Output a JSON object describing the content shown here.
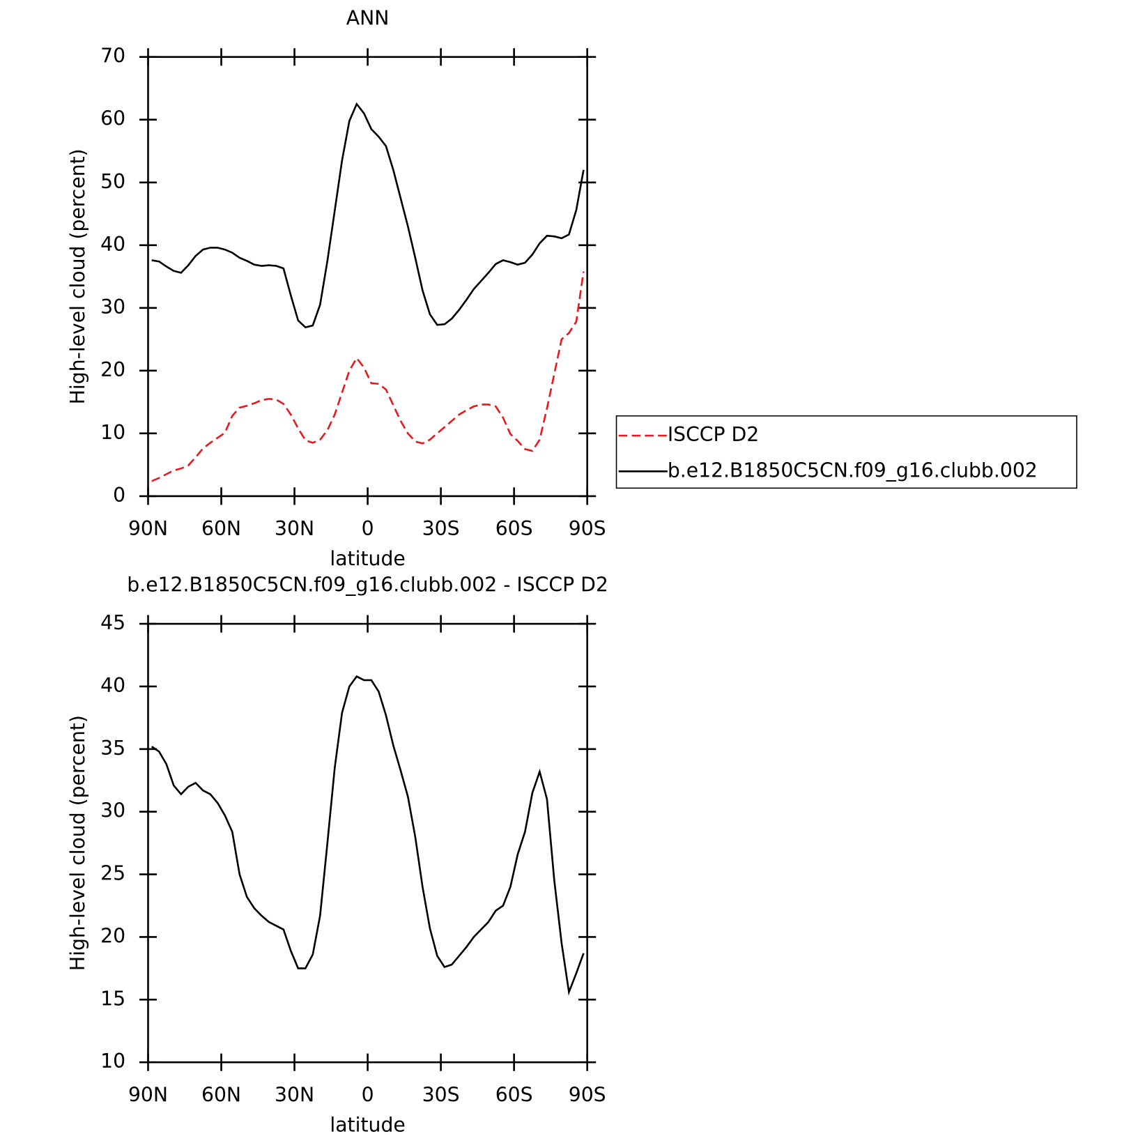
{
  "chart_data": [
    {
      "type": "line",
      "title": "ANN",
      "xlabel": "latitude",
      "ylabel": "High-level cloud (percent)",
      "x": [
        88.5,
        85.5,
        82.5,
        79.5,
        76.5,
        73.5,
        70.5,
        67.5,
        64.5,
        61.5,
        58.5,
        55.5,
        52.5,
        49.5,
        46.5,
        43.5,
        40.5,
        37.5,
        34.5,
        31.5,
        28.5,
        25.5,
        22.5,
        19.5,
        16.5,
        13.5,
        10.5,
        7.5,
        4.5,
        1.5,
        -1.5,
        -4.5,
        -7.5,
        -10.5,
        -13.5,
        -16.5,
        -19.5,
        -22.5,
        -25.5,
        -28.5,
        -31.5,
        -34.5,
        -37.5,
        -40.5,
        -43.5,
        -46.5,
        -49.5,
        -52.5,
        -55.5,
        -58.5,
        -61.5,
        -64.5,
        -67.5,
        -70.5,
        -73.5,
        -76.5,
        -79.5,
        -82.5,
        -85.5,
        -88.5
      ],
      "series": [
        {
          "name": "ISCCP D2",
          "color": "#e8191e",
          "style": "dashed",
          "values": [
            2.4,
            2.9,
            3.5,
            4.1,
            4.4,
            4.9,
            6.2,
            7.6,
            8.5,
            9.3,
            10.1,
            12.8,
            14.1,
            14.4,
            14.8,
            15.3,
            15.5,
            15.4,
            14.7,
            13.0,
            10.8,
            8.9,
            8.5,
            9.0,
            10.5,
            13.0,
            16.5,
            20.0,
            22.0,
            20.5,
            18.0,
            17.9,
            17.0,
            14.5,
            12.0,
            10.0,
            8.7,
            8.4,
            9.0,
            10.0,
            11.0,
            12.0,
            13.0,
            13.7,
            14.3,
            14.6,
            14.6,
            14.3,
            12.5,
            9.9,
            8.8,
            7.5,
            7.2,
            9.0,
            14.0,
            19.5,
            25.0,
            26.0,
            27.8,
            35.8
          ]
        },
        {
          "name": "b.e12.B1850C5CN.f09_g16.clubb.002",
          "color": "#000000",
          "style": "solid",
          "values": [
            37.6,
            37.4,
            36.6,
            35.9,
            35.6,
            36.8,
            38.3,
            39.3,
            39.6,
            39.6,
            39.3,
            38.8,
            38.0,
            37.5,
            36.9,
            36.7,
            36.8,
            36.7,
            36.3,
            32.0,
            28.0,
            26.9,
            27.2,
            30.5,
            37.5,
            45.5,
            53.5,
            59.8,
            62.5,
            61.0,
            58.5,
            57.3,
            55.8,
            52.0,
            47.5,
            43.0,
            38.0,
            32.8,
            29.0,
            27.3,
            27.4,
            28.3,
            29.7,
            31.3,
            33.0,
            34.3,
            35.6,
            37.0,
            37.6,
            37.3,
            36.9,
            37.2,
            38.5,
            40.3,
            41.5,
            41.4,
            41.1,
            41.7,
            45.6,
            52.0
          ]
        }
      ],
      "xlim": [
        90,
        -90
      ],
      "xticks": [
        {
          "value": 90,
          "label": "90N"
        },
        {
          "value": 60,
          "label": "60N"
        },
        {
          "value": 30,
          "label": "30N"
        },
        0,
        {
          "value": -30,
          "label": "30S"
        },
        {
          "value": -60,
          "label": "60S"
        },
        {
          "value": -90,
          "label": "90S"
        }
      ],
      "ylim": [
        0,
        70
      ],
      "yticks": [
        0,
        10,
        20,
        30,
        40,
        50,
        60,
        70
      ],
      "legend": "right"
    },
    {
      "type": "line",
      "title": "b.e12.B1850C5CN.f09_g16.clubb.002 - ISCCP D2",
      "xlabel": "latitude",
      "ylabel": "High-level cloud (percent)",
      "x": [
        88.5,
        85.5,
        82.5,
        79.5,
        76.5,
        73.5,
        70.5,
        67.5,
        64.5,
        61.5,
        58.5,
        55.5,
        52.5,
        49.5,
        46.5,
        43.5,
        40.5,
        37.5,
        34.5,
        31.5,
        28.5,
        25.5,
        22.5,
        19.5,
        16.5,
        13.5,
        10.5,
        7.5,
        4.5,
        1.5,
        -1.5,
        -4.5,
        -7.5,
        -10.5,
        -13.5,
        -16.5,
        -19.5,
        -22.5,
        -25.5,
        -28.5,
        -31.5,
        -34.5,
        -37.5,
        -40.5,
        -43.5,
        -46.5,
        -49.5,
        -52.5,
        -55.5,
        -58.5,
        -61.5,
        -64.5,
        -67.5,
        -70.5,
        -73.5,
        -76.5,
        -79.5,
        -82.5,
        -85.5,
        -88.5
      ],
      "series": [
        {
          "color": "#000000",
          "style": "solid",
          "values": [
            35.2,
            34.8,
            33.8,
            32.1,
            31.4,
            32.0,
            32.3,
            31.7,
            31.4,
            30.7,
            29.7,
            28.4,
            25.0,
            23.2,
            22.3,
            21.7,
            21.2,
            20.9,
            20.6,
            18.9,
            17.5,
            17.5,
            18.6,
            21.7,
            27.5,
            33.5,
            37.9,
            40.0,
            40.8,
            40.5,
            40.5,
            39.6,
            37.7,
            35.3,
            33.3,
            31.2,
            28.0,
            24.0,
            20.7,
            18.5,
            17.6,
            17.8,
            18.5,
            19.2,
            20.0,
            20.6,
            21.2,
            22.1,
            22.5,
            24.0,
            26.6,
            28.4,
            31.5,
            33.2,
            31.0,
            24.5,
            19.5,
            15.6,
            17.1,
            18.7
          ]
        }
      ],
      "xlim": [
        90,
        -90
      ],
      "xticks": [
        {
          "value": 90,
          "label": "90N"
        },
        {
          "value": 60,
          "label": "60N"
        },
        {
          "value": 30,
          "label": "30N"
        },
        0,
        {
          "value": -30,
          "label": "30S"
        },
        {
          "value": -60,
          "label": "60S"
        },
        {
          "value": -90,
          "label": "90S"
        }
      ],
      "ylim": [
        10,
        45
      ],
      "yticks": [
        10,
        15,
        20,
        25,
        30,
        35,
        40,
        45
      ]
    }
  ]
}
